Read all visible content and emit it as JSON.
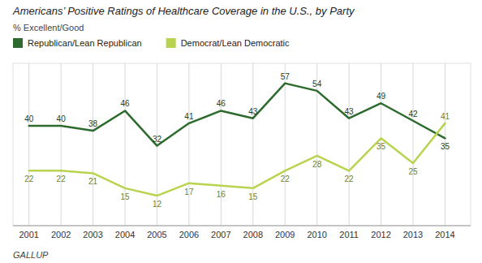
{
  "chart_data": {
    "type": "line",
    "title": "Americans’ Positive Ratings of Healthcare Coverage in the U.S., by Party",
    "y_label": "% Excellent/Good",
    "source": "GALLUP",
    "x": [
      2001,
      2002,
      2003,
      2004,
      2005,
      2006,
      2007,
      2008,
      2009,
      2010,
      2011,
      2012,
      2013,
      2014
    ],
    "series": [
      {
        "name": "Republican/Lean Republican",
        "color": "#2d6a2d",
        "values": [
          40,
          40,
          38,
          46,
          32,
          41,
          46,
          43,
          57,
          54,
          43,
          49,
          42,
          35
        ]
      },
      {
        "name": "Democrat/Lean Democratic",
        "color": "#b8d44e",
        "values": [
          22,
          22,
          21,
          15,
          12,
          17,
          16,
          15,
          22,
          28,
          22,
          35,
          25,
          41
        ]
      }
    ],
    "xlim": [
      2000.5,
      2014.8
    ],
    "xticks": [
      2001,
      2002,
      2003,
      2004,
      2005,
      2006,
      2007,
      2008,
      2009,
      2010,
      2011,
      2012,
      2013,
      2014
    ],
    "ylim": [
      0,
      65
    ],
    "grid": true,
    "legend": "top",
    "data_labels": true,
    "tick_labels": "x"
  }
}
